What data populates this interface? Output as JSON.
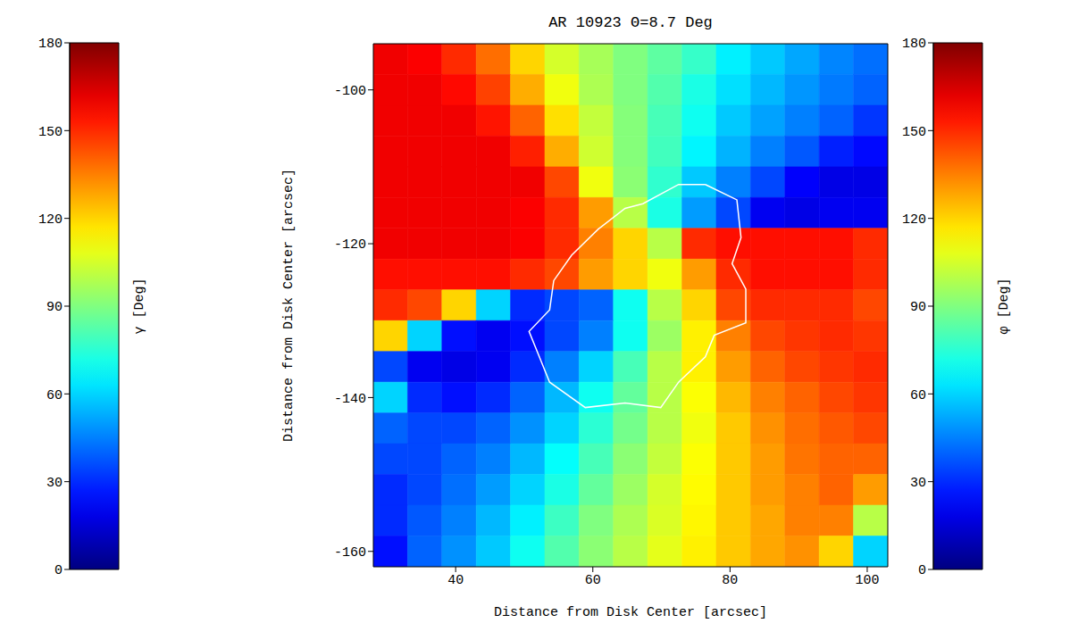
{
  "chart_data": {
    "type": "heatmap",
    "title": "AR 10923 Θ=8.7 Deg",
    "x_label": "Distance from Disk Center [arcsec]",
    "y_label": "Distance from Disk Center [arcsec]",
    "xlim": [
      28,
      103
    ],
    "ylim": [
      -162,
      -94
    ],
    "xticks": [
      40,
      60,
      80,
      100
    ],
    "yticks": [
      -160,
      -140,
      -120,
      -100
    ],
    "x": [
      30.5,
      35.5,
      40.5,
      45.5,
      50.5,
      55.5,
      60.5,
      65.5,
      70.5,
      75.5,
      80.5,
      85.5,
      90.5,
      95.5,
      100.5
    ],
    "y": [
      -96,
      -100,
      -104,
      -108,
      -112,
      -116,
      -120,
      -124,
      -128,
      -132,
      -136,
      -140,
      -144,
      -148,
      -152,
      -156,
      -160
    ],
    "cells": [
      [
        160,
        158,
        150,
        138,
        120,
        105,
        97,
        90,
        84,
        77,
        65,
        58,
        52,
        46,
        42
      ],
      [
        160,
        160,
        156,
        146,
        127,
        110,
        98,
        90,
        82,
        72,
        62,
        55,
        49,
        44,
        40
      ],
      [
        160,
        160,
        160,
        154,
        140,
        118,
        102,
        91,
        80,
        70,
        58,
        51,
        45,
        40,
        32
      ],
      [
        160,
        160,
        160,
        160,
        152,
        127,
        104,
        91,
        79,
        66,
        54,
        45,
        38,
        28,
        24
      ],
      [
        160,
        160,
        160,
        160,
        160,
        145,
        110,
        92,
        76,
        58,
        45,
        35,
        22,
        18,
        18
      ],
      [
        160,
        160,
        160,
        160,
        158,
        150,
        130,
        100,
        72,
        50,
        35,
        20,
        18,
        20,
        20
      ],
      [
        160,
        160,
        160,
        160,
        158,
        150,
        135,
        120,
        100,
        150,
        155,
        155,
        155,
        155,
        150
      ],
      [
        155,
        155,
        155,
        155,
        150,
        145,
        130,
        120,
        110,
        130,
        150,
        155,
        155,
        155,
        150
      ],
      [
        150,
        145,
        120,
        60,
        30,
        35,
        40,
        70,
        100,
        120,
        145,
        150,
        150,
        150,
        145
      ],
      [
        120,
        60,
        25,
        20,
        25,
        35,
        45,
        70,
        95,
        115,
        135,
        145,
        148,
        150,
        148
      ],
      [
        35,
        20,
        18,
        20,
        30,
        45,
        60,
        80,
        100,
        115,
        130,
        140,
        145,
        148,
        150
      ],
      [
        60,
        30,
        25,
        30,
        40,
        55,
        70,
        85,
        100,
        112,
        125,
        135,
        140,
        145,
        148
      ],
      [
        40,
        35,
        35,
        40,
        48,
        60,
        75,
        88,
        100,
        110,
        122,
        132,
        138,
        142,
        145
      ],
      [
        35,
        35,
        40,
        45,
        55,
        68,
        80,
        92,
        102,
        112,
        122,
        130,
        137,
        140,
        140
      ],
      [
        30,
        35,
        42,
        50,
        60,
        72,
        85,
        95,
        105,
        113,
        122,
        130,
        135,
        140,
        130
      ],
      [
        30,
        38,
        45,
        55,
        65,
        78,
        90,
        98,
        106,
        114,
        122,
        128,
        135,
        135,
        100
      ],
      [
        25,
        40,
        48,
        58,
        70,
        82,
        92,
        100,
        108,
        115,
        122,
        128,
        132,
        120,
        60
      ]
    ],
    "colorbars": [
      {
        "label": "γ [Deg]",
        "range": [
          0,
          180
        ],
        "ticks": [
          0,
          30,
          60,
          90,
          120,
          150,
          180
        ]
      },
      {
        "label": "φ [Deg]",
        "range": [
          0,
          180
        ],
        "ticks": [
          0,
          30,
          60,
          90,
          120,
          150,
          180
        ]
      }
    ],
    "contour": {
      "color": "#ffffff",
      "x": [
        76.4,
        81.0,
        81.6,
        80.3,
        82.3,
        82.3,
        77.7,
        76.4,
        72.5,
        69.9,
        64.7,
        58.9,
        53.7,
        51.7,
        50.7,
        53.7,
        54.3,
        56.9,
        60.8,
        64.7,
        67.3,
        72.5
      ],
      "y": [
        -112.3,
        -114.3,
        -119.2,
        -122.6,
        -125.9,
        -130.3,
        -131.9,
        -134.7,
        -138.0,
        -141.3,
        -140.7,
        -141.3,
        -138.0,
        -133.6,
        -131.4,
        -128.6,
        -124.8,
        -121.5,
        -118.1,
        -115.4,
        -114.8,
        -112.3
      ]
    }
  }
}
